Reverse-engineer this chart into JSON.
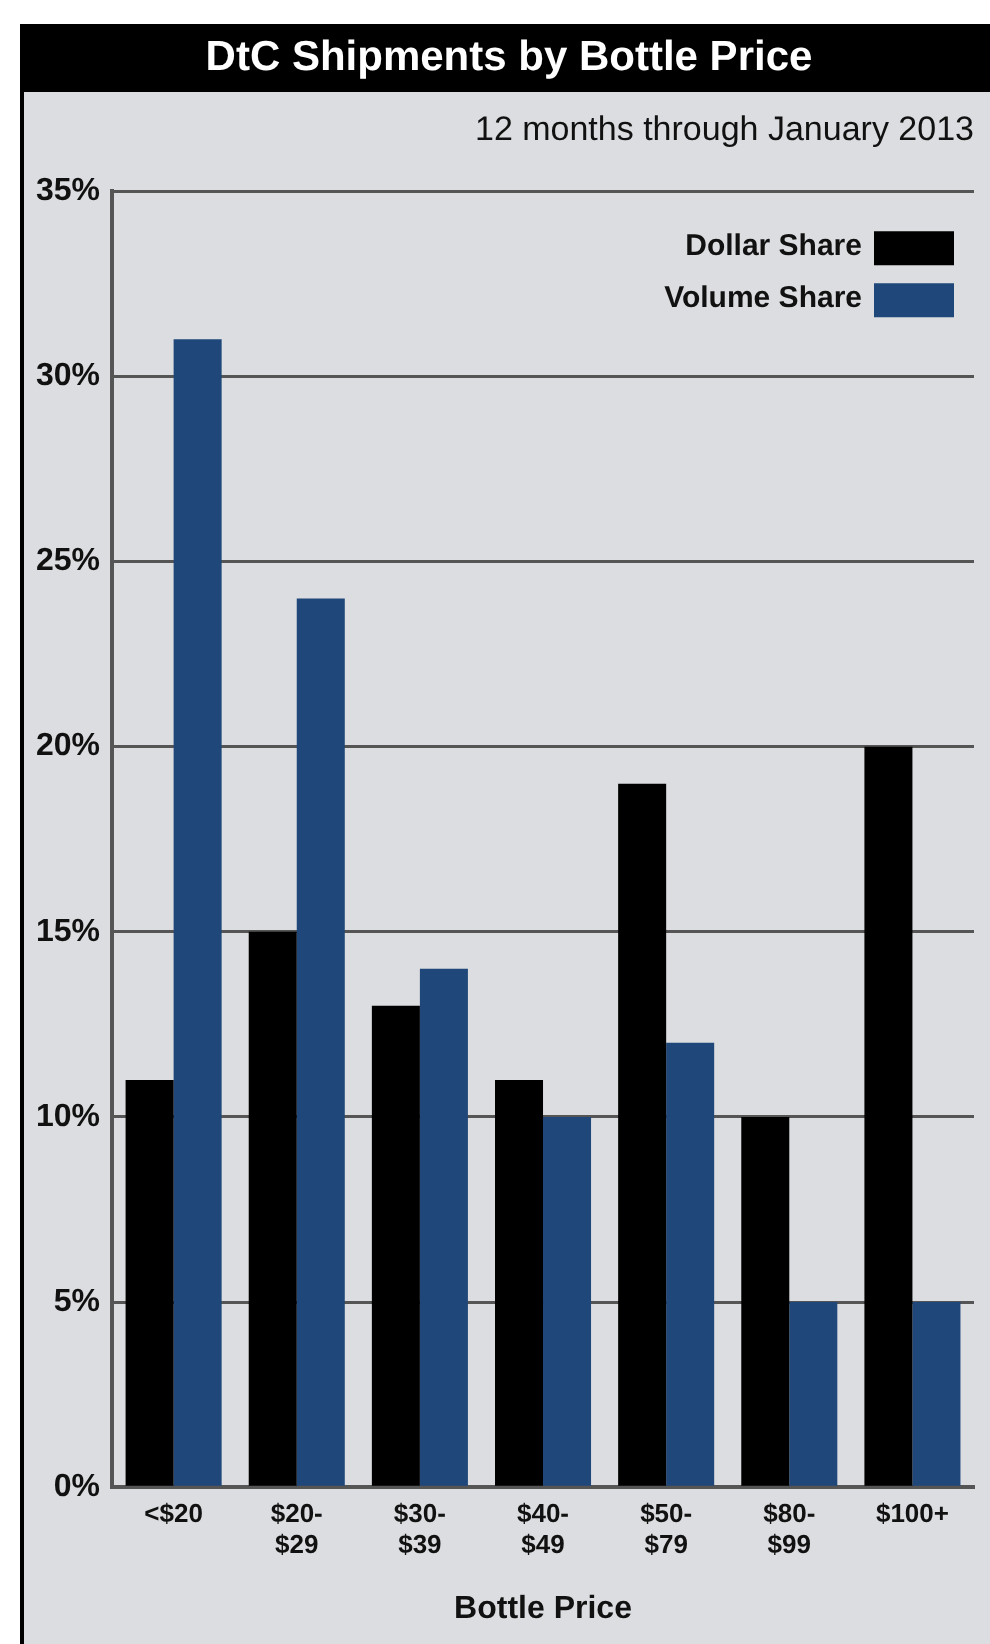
{
  "chart_data": {
    "type": "bar",
    "title": "DtC Shipments by Bottle Price",
    "subtitle": "12 months through January  2013",
    "xlabel": "Bottle Price",
    "categories": [
      "<$20",
      "$20-\n$29",
      "$30-\n$39",
      "$40-\n$49",
      "$50-\n$79",
      "$80-\n$99",
      "$100+"
    ],
    "series": [
      {
        "name": "Dollar Share",
        "color": "#000000",
        "values": [
          11,
          15,
          13,
          11,
          19,
          10,
          20
        ]
      },
      {
        "name": "Volume Share",
        "color": "#1f477a",
        "values": [
          31,
          24,
          14,
          10,
          12,
          5,
          5
        ]
      }
    ],
    "ylim": [
      0,
      35
    ],
    "yticks": [
      {
        "value": 0,
        "label": "0%"
      },
      {
        "value": 5,
        "label": "5%"
      },
      {
        "value": 10,
        "label": "10%"
      },
      {
        "value": 15,
        "label": "15%"
      },
      {
        "value": 20,
        "label": "20%"
      },
      {
        "value": 25,
        "label": "25%"
      },
      {
        "value": 30,
        "label": "30%"
      },
      {
        "value": 35,
        "label": "35%"
      }
    ],
    "grid": "y",
    "legend": "top right"
  }
}
